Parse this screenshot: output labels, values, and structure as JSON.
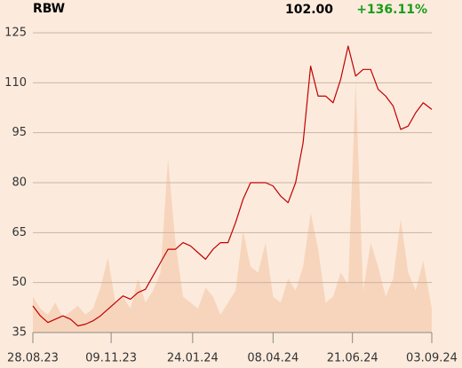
{
  "chart_data": {
    "type": "line",
    "title": "RBW",
    "annotations": [
      "102.00",
      "+136.11%"
    ],
    "x": [
      "28.08.23",
      "04.09.23",
      "11.09.23",
      "18.09.23",
      "25.09.23",
      "02.10.23",
      "09.10.23",
      "16.10.23",
      "23.10.23",
      "30.10.23",
      "06.11.23",
      "13.11.23",
      "20.11.23",
      "27.11.23",
      "04.12.23",
      "11.12.23",
      "18.12.23",
      "25.12.23",
      "01.01.24",
      "08.01.24",
      "15.01.24",
      "22.01.24",
      "29.01.24",
      "05.02.24",
      "12.02.24",
      "19.02.24",
      "26.02.24",
      "04.03.24",
      "11.03.24",
      "18.03.24",
      "25.03.24",
      "01.04.24",
      "08.04.24",
      "15.04.24",
      "22.04.24",
      "29.04.24",
      "06.05.24",
      "13.05.24",
      "20.05.24",
      "27.05.24",
      "03.06.24",
      "10.06.24",
      "17.06.24",
      "24.06.24",
      "01.07.24",
      "08.07.24",
      "15.07.24",
      "22.07.24",
      "29.07.24",
      "05.08.24",
      "12.08.24",
      "19.08.24",
      "26.08.24",
      "03.09.24"
    ],
    "series": [
      {
        "color": "#c00000",
        "values": [
          43,
          40,
          38,
          39,
          40,
          39,
          37,
          37.5,
          38.5,
          40,
          42,
          44,
          46,
          45,
          47,
          48,
          52,
          56,
          60,
          60,
          62,
          61,
          59,
          57,
          60,
          62,
          62,
          68,
          75,
          80,
          80,
          80,
          79,
          76,
          74,
          80,
          92,
          115,
          106,
          106,
          104,
          111,
          121,
          112,
          114,
          114,
          108,
          106,
          103,
          96,
          97,
          101,
          104,
          102
        ]
      },
      {
        "color": "#f7d5bc",
        "axis": "y2",
        "values": [
          12,
          8,
          6,
          10,
          5,
          7,
          9,
          6,
          8,
          15,
          25,
          10,
          12,
          8,
          18,
          10,
          14,
          20,
          58,
          30,
          12,
          10,
          8,
          15,
          12,
          6,
          10,
          14,
          34,
          22,
          20,
          30,
          12,
          10,
          18,
          14,
          22,
          40,
          28,
          10,
          12,
          20,
          16,
          84,
          14,
          30,
          22,
          12,
          18,
          38,
          20,
          14,
          24,
          8
        ]
      }
    ],
    "xlim": [
      "28.08.23",
      "03.09.24"
    ],
    "xticks": [
      "28.08.23",
      "09.11.23",
      "24.01.24",
      "08.04.24",
      "21.06.24",
      "03.09.24"
    ],
    "ylim": [
      35,
      125
    ],
    "yticks": [
      35,
      50,
      65,
      80,
      95,
      110,
      125
    ],
    "y2lim": [
      0,
      100
    ],
    "grid": true
  }
}
